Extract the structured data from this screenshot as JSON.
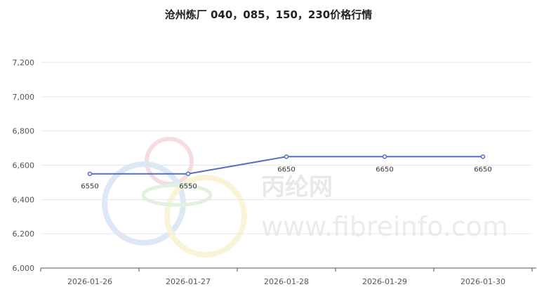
{
  "watermark": {
    "cn_text": "丙纶网",
    "url_text": "www.fibreinfo.com",
    "colors": [
      "#e8a0a0",
      "#9cc0e8",
      "#f0e090",
      "#a8d8a8"
    ]
  },
  "chart_data": {
    "type": "line",
    "title": "沧州炼厂 040，085，150，230价格行情",
    "xlabel": "",
    "ylabel": "",
    "categories": [
      "2026-01-26",
      "2026-01-27",
      "2026-01-28",
      "2026-01-29",
      "2026-01-30"
    ],
    "series": [
      {
        "values": [
          6550,
          6550,
          6650,
          6650,
          6650
        ],
        "color": "#5470c6",
        "data_labels": [
          "6550",
          "6550",
          "6650",
          "6650",
          "6650"
        ]
      }
    ],
    "ylim": [
      6000,
      7200
    ],
    "yticks": [
      6000,
      6200,
      6400,
      6600,
      6800,
      7000,
      7200
    ],
    "ytick_labels": [
      "6,000",
      "6,200",
      "6,400",
      "6,600",
      "6,800",
      "7,000",
      "7,200"
    ],
    "grid": true,
    "legend": "none"
  }
}
